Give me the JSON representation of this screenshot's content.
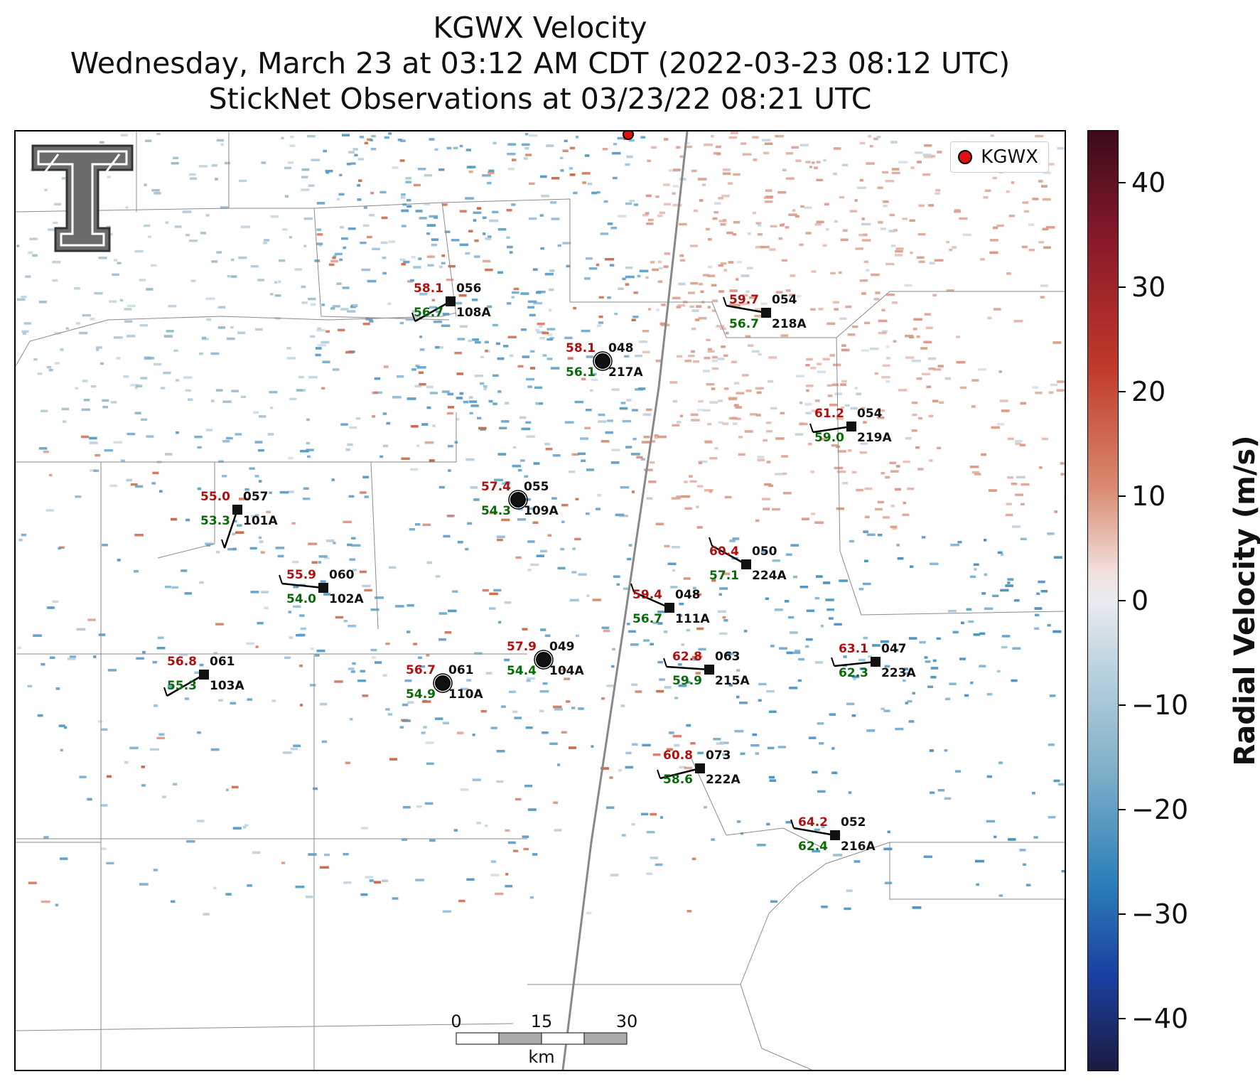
{
  "title": {
    "line1": "KGWX Velocity",
    "line2": "Wednesday, March 23 at 03:12 AM CDT (2022-03-23 08:12 UTC)",
    "line3": "StickNet Observations at 03/23/22 08:21 UTC"
  },
  "legend": {
    "label": "KGWX",
    "marker_color": "#e01010"
  },
  "colorbar": {
    "label": "Radial Velocity (m/s)",
    "ticks": [
      "40",
      "30",
      "20",
      "10",
      "0",
      "−10",
      "−20",
      "−30",
      "−40"
    ],
    "range": [
      -45,
      45
    ],
    "colors": {
      "positive": "#c0392b",
      "neutral": "#e9ecef",
      "negative": "#2c7fb8"
    }
  },
  "scalebar": {
    "labels": [
      "0",
      "15",
      "30"
    ],
    "unit": "km"
  },
  "logo": {
    "name": "Texas Tech Double T"
  },
  "stations": [
    {
      "id": "056",
      "name": "108A",
      "temp": "58.1",
      "dew": "56.7"
    },
    {
      "id": "054",
      "name": "218A",
      "temp": "59.7",
      "dew": "56.7"
    },
    {
      "id": "048",
      "name": "217A",
      "temp": "58.1",
      "dew": "56.1"
    },
    {
      "id": "054",
      "name": "219A",
      "temp": "61.2",
      "dew": "59.0"
    },
    {
      "id": "057",
      "name": "101A",
      "temp": "55.0",
      "dew": "53.3"
    },
    {
      "id": "055",
      "name": "109A",
      "temp": "57.4",
      "dew": "54.3"
    },
    {
      "id": "050",
      "name": "224A",
      "temp": "60.4",
      "dew": "57.1"
    },
    {
      "id": "060",
      "name": "102A",
      "temp": "55.9",
      "dew": "54.0"
    },
    {
      "id": "048",
      "name": "111A",
      "temp": "59.4",
      "dew": "56.7"
    },
    {
      "id": "061",
      "name": "103A",
      "temp": "56.8",
      "dew": "55.3"
    },
    {
      "id": "049",
      "name": "104A",
      "temp": "57.9",
      "dew": "54.4"
    },
    {
      "id": "061",
      "name": "110A",
      "temp": "56.7",
      "dew": "54.9"
    },
    {
      "id": "063",
      "name": "215A",
      "temp": "62.8",
      "dew": "59.9"
    },
    {
      "id": "047",
      "name": "223A",
      "temp": "63.1",
      "dew": "62.3"
    },
    {
      "id": "073",
      "name": "222A",
      "temp": "60.8",
      "dew": "58.6"
    },
    {
      "id": "052",
      "name": "216A",
      "temp": "64.2",
      "dew": "62.4"
    }
  ]
}
